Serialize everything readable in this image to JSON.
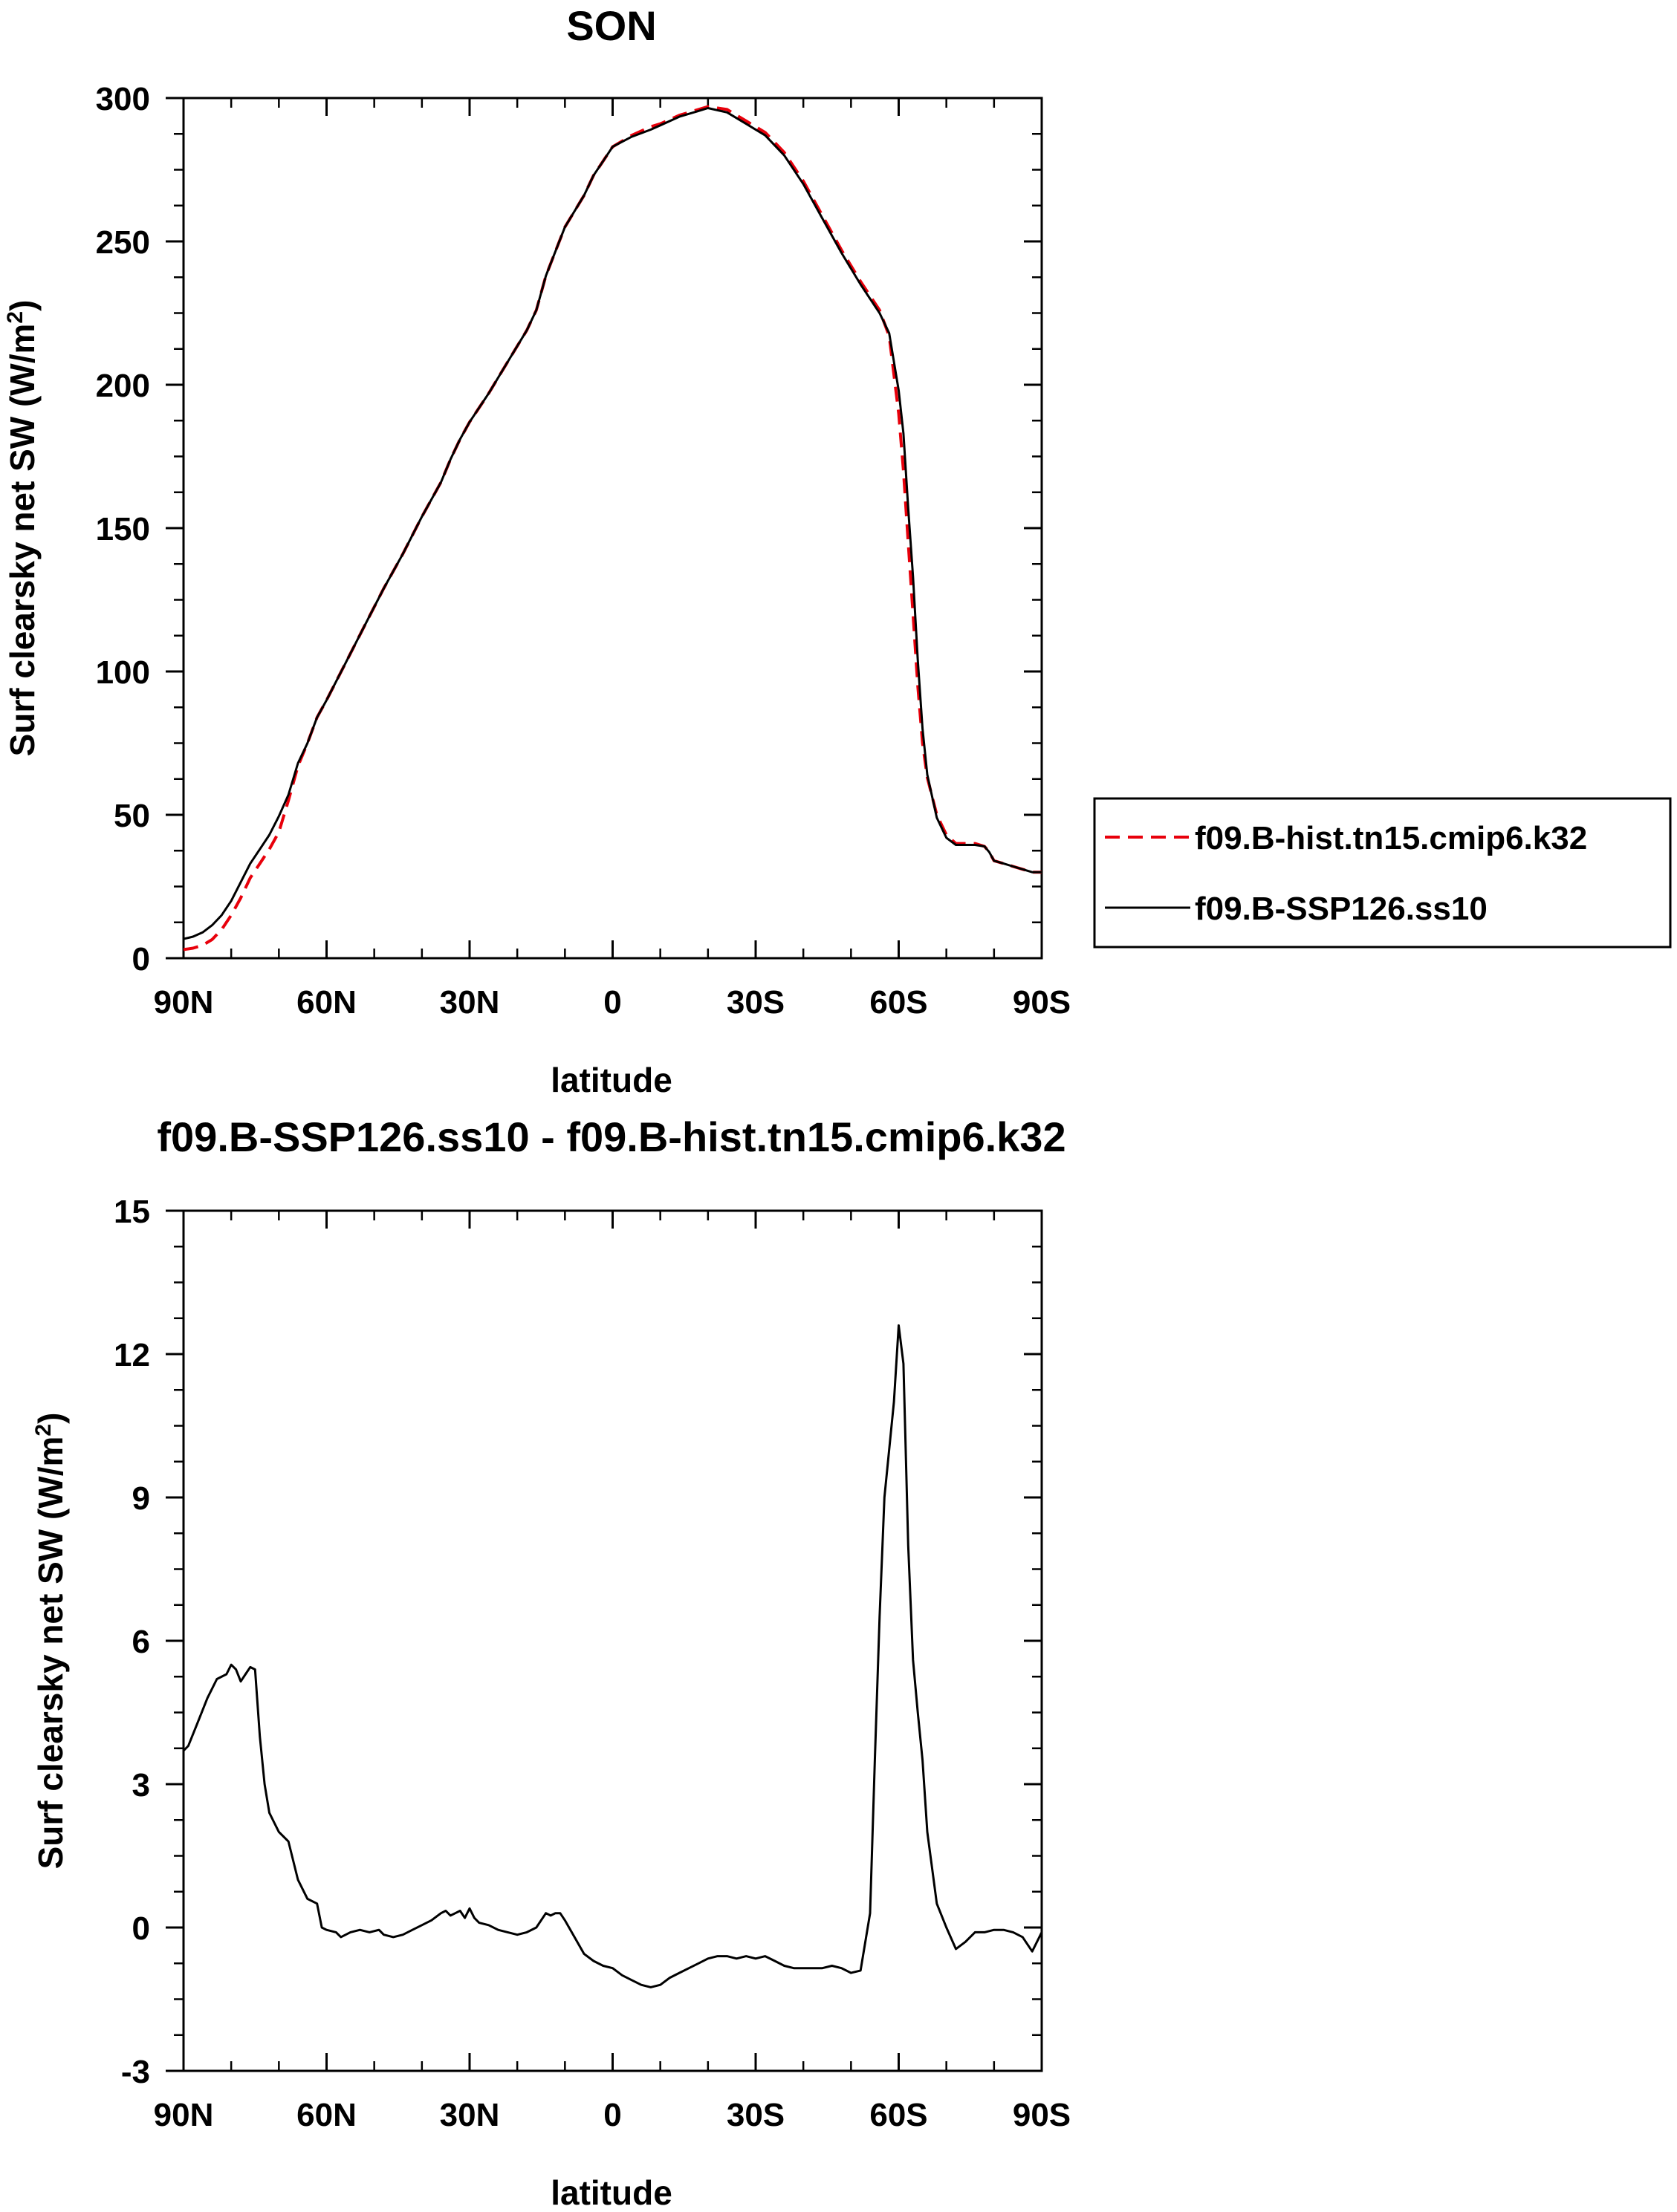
{
  "chart_data": [
    {
      "type": "line",
      "title": "SON",
      "xlabel": "latitude",
      "ylabel": "Surf clearsky net SW (W/m",
      "ylabel_superscript": "2",
      "ylabel_suffix": ")",
      "xlim": [
        90,
        -90
      ],
      "ylim": [
        0,
        300
      ],
      "x_ticks": [
        90,
        60,
        30,
        0,
        -30,
        -60,
        -90
      ],
      "x_tick_labels": [
        "90N",
        "60N",
        "30N",
        "0",
        "30S",
        "60S",
        "90S"
      ],
      "y_ticks": [
        0,
        50,
        100,
        150,
        200,
        250,
        300
      ],
      "y_tick_labels": [
        "0",
        "50",
        "100",
        "150",
        "200",
        "250",
        "300"
      ],
      "legend": {
        "position": "right",
        "entries": [
          {
            "label": "f09.B-hist.tn15.cmip6.k32",
            "color": "#e8000b",
            "style": "dashed"
          },
          {
            "label": "f09.B-SSP126.ss10",
            "color": "#000000",
            "style": "solid"
          }
        ]
      },
      "series": [
        {
          "name": "f09.B-hist.tn15.cmip6.k32",
          "color": "#e8000b",
          "style": "dashed",
          "x": [
            90,
            88,
            86,
            84,
            82,
            80,
            78,
            76,
            74,
            72,
            70,
            68,
            66,
            64,
            62,
            60,
            56,
            52,
            48,
            44,
            40,
            36,
            34,
            32,
            30,
            26,
            22,
            18,
            16,
            14,
            10,
            6,
            4,
            2,
            0,
            -4,
            -8,
            -10,
            -14,
            -18,
            -20,
            -24,
            -28,
            -32,
            -36,
            -40,
            -44,
            -48,
            -52,
            -56,
            -58,
            -60,
            -61,
            -62,
            -63,
            -64,
            -65,
            -66,
            -68,
            -70,
            -72,
            -74,
            -76,
            -78,
            -79,
            -80,
            -82,
            -84,
            -86,
            -88,
            -90
          ],
          "values": [
            3,
            3.5,
            4.5,
            6.5,
            10,
            15,
            21,
            28,
            33,
            38,
            44,
            55,
            67,
            75,
            84,
            90,
            103,
            116,
            129,
            141,
            154,
            166,
            174,
            181,
            187,
            197,
            208,
            219,
            226,
            238,
            255,
            266,
            273,
            278,
            283,
            287,
            290,
            291,
            294,
            296,
            297,
            296,
            292,
            288,
            281,
            271,
            259,
            247,
            236,
            226,
            217,
            190,
            170,
            145,
            120,
            95,
            75,
            63,
            50,
            43,
            40,
            40,
            40,
            39,
            37,
            34,
            33,
            32,
            31,
            30,
            30
          ]
        },
        {
          "name": "f09.B-SSP126.ss10",
          "color": "#000000",
          "style": "solid",
          "x": [
            90,
            88,
            86,
            84,
            82,
            80,
            78,
            76,
            74,
            72,
            70,
            68,
            66,
            64,
            62,
            60,
            56,
            52,
            48,
            44,
            40,
            36,
            34,
            32,
            30,
            26,
            22,
            18,
            16,
            14,
            10,
            6,
            4,
            2,
            0,
            -4,
            -8,
            -10,
            -14,
            -18,
            -20,
            -24,
            -28,
            -32,
            -36,
            -40,
            -44,
            -48,
            -52,
            -56,
            -58,
            -60,
            -61,
            -62,
            -63,
            -64,
            -65,
            -66,
            -68,
            -70,
            -72,
            -74,
            -76,
            -78,
            -79,
            -80,
            -82,
            -84,
            -86,
            -88,
            -90
          ],
          "values": [
            6.7,
            7.5,
            9,
            11.5,
            15,
            20,
            26.5,
            33,
            38,
            43,
            49.5,
            57,
            68,
            75,
            84,
            90,
            103,
            116,
            129,
            141,
            154,
            166,
            174,
            181,
            187,
            197,
            208,
            219,
            226,
            238,
            255,
            266,
            273,
            278,
            283,
            286.5,
            289,
            290.5,
            293.5,
            295.5,
            296.5,
            295,
            291,
            287,
            280,
            270,
            258,
            246,
            235,
            225,
            218,
            198,
            183,
            157,
            133,
            104,
            80,
            64,
            49,
            42,
            39.5,
            39.5,
            39.5,
            39,
            37,
            34,
            33,
            32,
            31,
            30,
            30
          ]
        }
      ]
    },
    {
      "type": "line",
      "title": "f09.B-SSP126.ss10 - f09.B-hist.tn15.cmip6.k32",
      "xlabel": "latitude",
      "ylabel": "Surf clearsky net SW (W/m",
      "ylabel_superscript": "2",
      "ylabel_suffix": ")",
      "xlim": [
        90,
        -90
      ],
      "ylim": [
        -3,
        15
      ],
      "x_ticks": [
        90,
        60,
        30,
        0,
        -30,
        -60,
        -90
      ],
      "x_tick_labels": [
        "90N",
        "60N",
        "30N",
        "0",
        "30S",
        "60S",
        "90S"
      ],
      "y_ticks": [
        -3,
        0,
        3,
        6,
        9,
        12,
        15
      ],
      "y_tick_labels": [
        "-3",
        "0",
        "3",
        "6",
        "9",
        "12",
        "15"
      ],
      "series": [
        {
          "name": "f09.B-SSP126.ss10 - f09.B-hist.tn15.cmip6.k32",
          "color": "#000000",
          "style": "solid",
          "x": [
            90,
            89,
            87,
            85,
            83,
            81,
            80,
            79,
            78,
            77,
            76,
            75,
            74,
            73,
            72,
            71,
            70,
            68,
            66,
            64,
            62,
            61,
            60,
            58,
            57,
            55,
            53,
            51,
            49,
            48,
            46,
            44,
            42,
            40,
            38,
            36,
            35,
            34,
            33,
            32,
            31,
            30,
            29,
            28,
            26,
            24,
            22,
            20,
            18,
            16,
            14,
            13,
            12,
            11,
            10,
            8,
            6,
            4,
            2,
            0,
            -2,
            -4,
            -6,
            -8,
            -10,
            -12,
            -14,
            -16,
            -18,
            -20,
            -22,
            -24,
            -26,
            -28,
            -30,
            -32,
            -34,
            -36,
            -38,
            -40,
            -42,
            -44,
            -46,
            -48,
            -50,
            -52,
            -54,
            -55,
            -56,
            -57,
            -58,
            -59,
            -60,
            -61,
            -62,
            -63,
            -64,
            -65,
            -66,
            -68,
            -70,
            -72,
            -74,
            -76,
            -78,
            -80,
            -82,
            -84,
            -86,
            -88,
            -89,
            -90
          ],
          "values": [
            3.7,
            3.8,
            4.3,
            4.8,
            5.2,
            5.3,
            5.5,
            5.4,
            5.15,
            5.3,
            5.45,
            5.4,
            4.0,
            3.0,
            2.4,
            2.2,
            2.0,
            1.8,
            1.0,
            0.6,
            0.5,
            0.0,
            -0.05,
            -0.1,
            -0.2,
            -0.1,
            -0.05,
            -0.1,
            -0.05,
            -0.15,
            -0.2,
            -0.15,
            -0.05,
            0.05,
            0.15,
            0.3,
            0.35,
            0.25,
            0.3,
            0.35,
            0.2,
            0.4,
            0.2,
            0.1,
            0.05,
            -0.05,
            -0.1,
            -0.15,
            -0.1,
            0.0,
            0.3,
            0.25,
            0.3,
            0.3,
            0.15,
            -0.2,
            -0.55,
            -0.7,
            -0.8,
            -0.85,
            -1.0,
            -1.1,
            -1.2,
            -1.25,
            -1.2,
            -1.05,
            -0.95,
            -0.85,
            -0.75,
            -0.65,
            -0.6,
            -0.6,
            -0.65,
            -0.6,
            -0.65,
            -0.6,
            -0.7,
            -0.8,
            -0.85,
            -0.85,
            -0.85,
            -0.85,
            -0.8,
            -0.85,
            -0.95,
            -0.9,
            0.3,
            3.5,
            6.5,
            9.0,
            10.0,
            11.0,
            12.6,
            11.8,
            8.0,
            5.6,
            4.5,
            3.5,
            2.0,
            0.5,
            0.0,
            -0.45,
            -0.3,
            -0.1,
            -0.1,
            -0.05,
            -0.05,
            -0.1,
            -0.2,
            -0.5,
            -0.3,
            -0.1
          ]
        }
      ]
    }
  ]
}
